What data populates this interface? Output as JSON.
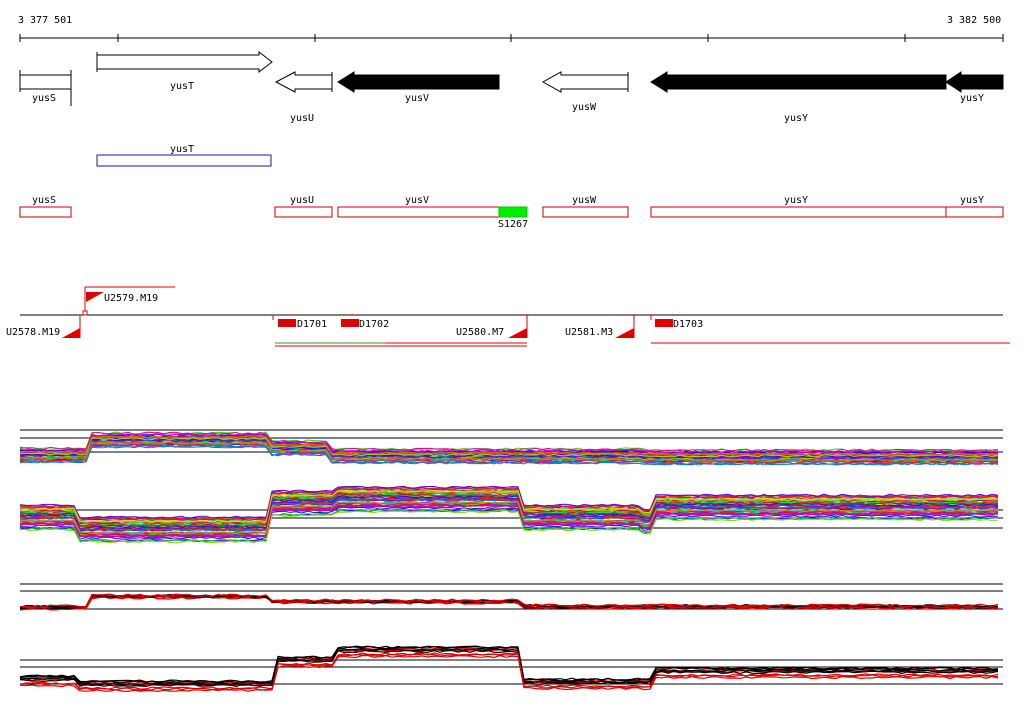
{
  "coords": {
    "start": "3 377 501",
    "end": "3 382 500"
  },
  "genes": [
    {
      "name": "yusS",
      "strand": "none",
      "filled": false
    },
    {
      "name": "yusT",
      "strand": "+",
      "filled": false
    },
    {
      "name": "yusU",
      "strand": "-",
      "filled": false
    },
    {
      "name": "yusV",
      "strand": "-",
      "filled": true
    },
    {
      "name": "yusW",
      "strand": "-",
      "filled": false
    },
    {
      "name": "yusY",
      "strand": "-",
      "filled": true
    },
    {
      "name": "yusY",
      "strand": "-",
      "filled": true
    }
  ],
  "annotation_blue": [
    {
      "name": "yusT"
    }
  ],
  "annotation_red": [
    {
      "name": "yusS"
    },
    {
      "name": "yusU"
    },
    {
      "name": "yusV"
    },
    {
      "name": "yusW"
    },
    {
      "name": "yusY"
    },
    {
      "name": "yusY"
    }
  ],
  "green_feature": {
    "name": "S1267",
    "color": "#00ee00"
  },
  "promoters": [
    {
      "name": "U2578.M19"
    },
    {
      "name": "U2579.M19"
    },
    {
      "name": "U2580.M7"
    },
    {
      "name": "U2581.M3"
    }
  ],
  "terminators": [
    {
      "name": "D1701"
    },
    {
      "name": "D1702"
    },
    {
      "name": "D1703"
    }
  ],
  "colors": {
    "promoter": "#ff0000",
    "feature_outline": "#cc0000",
    "blue_outline": "#1a1aa0",
    "profile_red": "#e00000"
  }
}
